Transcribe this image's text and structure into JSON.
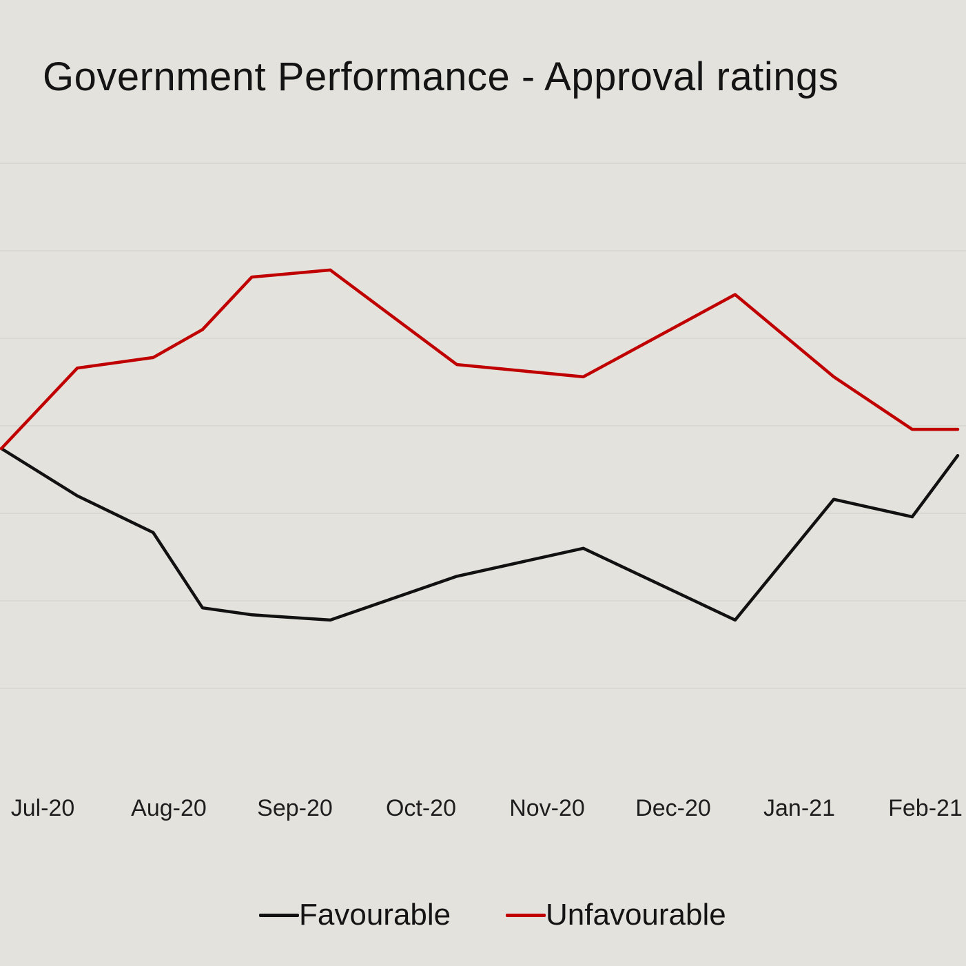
{
  "chart_data": {
    "type": "line",
    "title": "Government Performance - Approval ratings",
    "xlabel": "",
    "ylabel": "",
    "categories": [
      "Jul-20",
      "Aug-20",
      "Sep-20",
      "Oct-20",
      "Nov-20",
      "Dec-20",
      "Jan-21",
      "Feb-21"
    ],
    "x": [
      0.0,
      0.6,
      1.2,
      1.59,
      1.98,
      2.6,
      3.6,
      4.6,
      5.8,
      6.58,
      7.2,
      7.56
    ],
    "ylim": [
      25,
      60
    ],
    "grid": true,
    "legend_position": "bottom",
    "series": [
      {
        "name": "Favourable",
        "color": "#111111",
        "values": [
          43.7,
          41.0,
          38.9,
          34.6,
          34.2,
          33.9,
          36.4,
          38.0,
          33.9,
          40.8,
          39.8,
          43.3
        ]
      },
      {
        "name": "Unfavourable",
        "color": "#c00000",
        "values": [
          43.7,
          48.3,
          48.9,
          50.5,
          53.5,
          53.9,
          48.5,
          47.8,
          52.5,
          47.8,
          44.8,
          44.8
        ]
      }
    ]
  }
}
